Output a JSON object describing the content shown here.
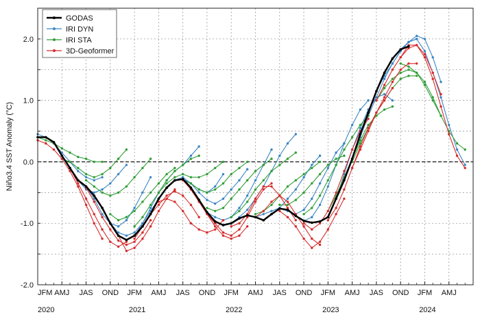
{
  "chart_data": {
    "type": "line",
    "ylabel": "Niño3.4 SST Anomaly (°C)",
    "ylim": [
      -2.0,
      2.5
    ],
    "yticks": [
      -2.0,
      -1.0,
      0.0,
      1.0,
      2.0
    ],
    "ytick_labels": [
      "-2.0",
      "-1.0",
      "0.0",
      "1.0",
      "2.0"
    ],
    "x_start": "2020-01",
    "x_months": 54,
    "xtick_labels": [
      "JFM",
      "AMJ",
      "JAS",
      "OND",
      "JFM",
      "AMJ",
      "JAS",
      "OND",
      "JFM",
      "AMJ",
      "JAS",
      "OND",
      "JFM",
      "AMJ",
      "JAS",
      "OND",
      "JFM",
      "AMJ"
    ],
    "year_labels": [
      "2020",
      "2021",
      "2022",
      "2023",
      "2024"
    ],
    "year_label_months": [
      0,
      12,
      24,
      36,
      48
    ],
    "reference_line": 0.0,
    "grid": true,
    "legend": {
      "placement": "top-left",
      "entries": [
        {
          "name": "GODAS",
          "color": "#000000",
          "width": 2.5
        },
        {
          "name": "IRI DYN",
          "color": "#3a86c4",
          "width": 1.2
        },
        {
          "name": "IRI STA",
          "color": "#2f9e36",
          "width": 1.2
        },
        {
          "name": "3D-Geoformer",
          "color": "#d62b2b",
          "width": 1.2
        }
      ]
    },
    "observed": {
      "name": "GODAS",
      "values": [
        0.4,
        0.4,
        0.32,
        0.1,
        -0.1,
        -0.3,
        -0.4,
        -0.55,
        -0.75,
        -1.0,
        -1.2,
        -1.27,
        -1.2,
        -1.05,
        -0.85,
        -0.6,
        -0.42,
        -0.3,
        -0.28,
        -0.42,
        -0.62,
        -0.82,
        -0.97,
        -1.03,
        -1.0,
        -0.92,
        -0.87,
        -0.9,
        -0.95,
        -0.85,
        -0.76,
        -0.78,
        -0.88,
        -0.96,
        -0.99,
        -0.97,
        -0.9,
        -0.6,
        -0.3,
        0.05,
        0.45,
        0.8,
        1.15,
        1.45,
        1.68,
        1.83,
        1.88,
        null,
        null,
        null,
        null,
        null,
        null,
        null
      ]
    },
    "series": [
      {
        "name": "IRI DYN",
        "forecasts": [
          {
            "start": 0,
            "values": [
              0.45,
              0.4,
              0.3,
              0.15,
              0.0,
              -0.15,
              -0.25,
              -0.3,
              -0.25
            ]
          },
          {
            "start": 3,
            "values": [
              0.1,
              -0.1,
              -0.3,
              -0.45,
              -0.5,
              -0.45,
              -0.35,
              -0.2,
              -0.05
            ]
          },
          {
            "start": 6,
            "values": [
              -0.4,
              -0.6,
              -0.85,
              -1.0,
              -1.05,
              -0.95,
              -0.75,
              -0.5,
              -0.25
            ]
          },
          {
            "start": 9,
            "values": [
              -1.0,
              -1.15,
              -1.2,
              -1.15,
              -1.0,
              -0.8,
              -0.6,
              -0.42,
              -0.3
            ]
          },
          {
            "start": 12,
            "values": [
              -1.2,
              -1.0,
              -0.75,
              -0.5,
              -0.3,
              -0.15,
              -0.05,
              0.1,
              0.25
            ]
          },
          {
            "start": 15,
            "values": [
              -0.6,
              -0.42,
              -0.3,
              -0.25,
              -0.35,
              -0.45,
              -0.5,
              -0.4,
              -0.2
            ]
          },
          {
            "start": 18,
            "values": [
              -0.28,
              -0.35,
              -0.5,
              -0.62,
              -0.68,
              -0.6,
              -0.45,
              -0.3,
              -0.12
            ]
          },
          {
            "start": 21,
            "values": [
              -0.82,
              -0.9,
              -0.95,
              -0.9,
              -0.75,
              -0.55,
              -0.3,
              -0.05,
              0.2
            ]
          },
          {
            "start": 24,
            "values": [
              -1.0,
              -0.9,
              -0.78,
              -0.6,
              -0.4,
              -0.15,
              0.1,
              0.3,
              0.45
            ]
          },
          {
            "start": 27,
            "values": [
              -0.9,
              -0.85,
              -0.8,
              -0.75,
              -0.6,
              -0.45,
              -0.25,
              -0.05,
              0.1
            ]
          },
          {
            "start": 30,
            "values": [
              -0.76,
              -0.8,
              -0.85,
              -0.78,
              -0.6,
              -0.35,
              -0.1,
              0.15,
              0.3
            ]
          },
          {
            "start": 33,
            "values": [
              -0.96,
              -0.9,
              -0.7,
              -0.4,
              -0.05,
              0.3,
              0.6,
              0.85,
              1.0
            ]
          },
          {
            "start": 36,
            "values": [
              -0.9,
              -0.6,
              -0.2,
              0.2,
              0.55,
              0.85,
              1.05,
              1.1,
              1.0
            ]
          },
          {
            "start": 39,
            "values": [
              0.05,
              0.4,
              0.75,
              1.05,
              1.35,
              1.6,
              1.8,
              1.95,
              2.0
            ]
          },
          {
            "start": 42,
            "values": [
              1.15,
              1.4,
              1.6,
              1.8,
              1.95,
              2.05,
              2.0,
              1.7,
              1.3
            ]
          },
          {
            "start": 45,
            "values": [
              1.83,
              1.95,
              2.0,
              1.8,
              1.45,
              1.05,
              0.6,
              0.2,
              -0.05
            ]
          }
        ]
      },
      {
        "name": "IRI STA",
        "forecasts": [
          {
            "start": 0,
            "values": [
              0.4,
              0.35,
              0.3,
              0.22,
              0.15,
              0.08,
              0.05,
              0.0,
              0.0
            ]
          },
          {
            "start": 3,
            "values": [
              0.05,
              0.0,
              -0.1,
              -0.2,
              -0.25,
              -0.2,
              -0.1,
              0.05,
              0.2
            ]
          },
          {
            "start": 6,
            "values": [
              -0.3,
              -0.4,
              -0.5,
              -0.55,
              -0.5,
              -0.4,
              -0.25,
              -0.1,
              0.05
            ]
          },
          {
            "start": 9,
            "values": [
              -0.85,
              -0.95,
              -0.9,
              -0.8,
              -0.65,
              -0.5,
              -0.35,
              -0.2,
              -0.1
            ]
          },
          {
            "start": 12,
            "values": [
              -1.05,
              -0.9,
              -0.7,
              -0.5,
              -0.3,
              -0.15,
              -0.05,
              0.05,
              0.1
            ]
          },
          {
            "start": 15,
            "values": [
              -0.5,
              -0.35,
              -0.25,
              -0.2,
              -0.25,
              -0.25,
              -0.2,
              -0.1,
              0.0
            ]
          },
          {
            "start": 18,
            "values": [
              -0.3,
              -0.35,
              -0.45,
              -0.5,
              -0.45,
              -0.35,
              -0.2,
              -0.1,
              0.0
            ]
          },
          {
            "start": 21,
            "values": [
              -0.75,
              -0.8,
              -0.75,
              -0.6,
              -0.45,
              -0.3,
              -0.15,
              -0.05,
              0.05
            ]
          },
          {
            "start": 24,
            "values": [
              -0.9,
              -0.8,
              -0.65,
              -0.45,
              -0.3,
              -0.15,
              -0.05,
              0.05,
              0.15
            ]
          },
          {
            "start": 27,
            "values": [
              -0.85,
              -0.8,
              -0.7,
              -0.55,
              -0.4,
              -0.3,
              -0.2,
              -0.1,
              0.0
            ]
          },
          {
            "start": 30,
            "values": [
              -0.7,
              -0.7,
              -0.62,
              -0.5,
              -0.35,
              -0.2,
              -0.05,
              0.05,
              0.1
            ]
          },
          {
            "start": 33,
            "values": [
              -0.85,
              -0.75,
              -0.55,
              -0.3,
              -0.05,
              0.2,
              0.4,
              0.6,
              0.75
            ]
          },
          {
            "start": 36,
            "values": [
              -0.8,
              -0.55,
              -0.25,
              0.05,
              0.35,
              0.6,
              0.75,
              0.85,
              0.9
            ]
          },
          {
            "start": 39,
            "values": [
              0.0,
              0.3,
              0.55,
              0.8,
              1.0,
              1.2,
              1.35,
              1.4,
              1.4
            ]
          },
          {
            "start": 42,
            "values": [
              1.0,
              1.2,
              1.35,
              1.45,
              1.5,
              1.45,
              1.3,
              1.05,
              0.75
            ]
          },
          {
            "start": 45,
            "values": [
              1.6,
              1.55,
              1.45,
              1.25,
              1.0,
              0.75,
              0.5,
              0.3,
              0.2
            ]
          }
        ]
      },
      {
        "name": "3D-Geoformer",
        "forecasts": [
          {
            "start": 0,
            "values": [
              0.35,
              0.3,
              0.2,
              0.05,
              -0.15,
              -0.4,
              -0.7,
              -1.0,
              -1.25
            ]
          },
          {
            "start": 3,
            "values": [
              0.1,
              -0.1,
              -0.35,
              -0.6,
              -0.85,
              -1.1,
              -1.3,
              -1.38,
              -1.3
            ]
          },
          {
            "start": 6,
            "values": [
              -0.42,
              -0.65,
              -0.9,
              -1.1,
              -1.28,
              -1.35,
              -1.3,
              -1.15,
              -0.95
            ]
          },
          {
            "start": 9,
            "values": [
              -1.0,
              -1.2,
              -1.45,
              -1.4,
              -1.25,
              -1.05,
              -0.8,
              -0.6,
              -0.45
            ]
          },
          {
            "start": 12,
            "values": [
              -1.25,
              -1.05,
              -0.85,
              -0.7,
              -0.55,
              -0.48,
              -0.55,
              -0.7,
              -0.9
            ]
          },
          {
            "start": 15,
            "values": [
              -0.65,
              -0.6,
              -0.65,
              -0.8,
              -1.0,
              -1.1,
              -1.15,
              -1.1,
              -0.95
            ]
          },
          {
            "start": 18,
            "values": [
              -0.3,
              -0.45,
              -0.65,
              -0.85,
              -1.05,
              -1.2,
              -1.25,
              -1.2,
              -1.05
            ]
          },
          {
            "start": 21,
            "values": [
              -0.85,
              -1.0,
              -1.15,
              -1.2,
              -1.1,
              -0.9,
              -0.65,
              -0.45,
              -0.35
            ]
          },
          {
            "start": 24,
            "values": [
              -1.05,
              -1.0,
              -0.85,
              -0.6,
              -0.4,
              -0.4,
              -0.55,
              -0.75,
              -0.95
            ]
          },
          {
            "start": 27,
            "values": [
              -0.9,
              -0.8,
              -0.65,
              -0.55,
              -0.65,
              -0.85,
              -1.05,
              -1.25,
              -1.35
            ]
          },
          {
            "start": 30,
            "values": [
              -0.8,
              -0.9,
              -1.05,
              -1.25,
              -1.4,
              -1.3,
              -1.1,
              -0.85,
              -0.6
            ]
          },
          {
            "start": 33,
            "values": [
              -1.0,
              -1.1,
              -1.0,
              -0.8,
              -0.5,
              -0.15,
              0.2,
              0.5,
              0.7
            ]
          },
          {
            "start": 36,
            "values": [
              -0.95,
              -0.75,
              -0.45,
              -0.1,
              0.25,
              0.55,
              0.8,
              1.0,
              1.2
            ]
          },
          {
            "start": 39,
            "values": [
              -0.1,
              0.2,
              0.5,
              0.8,
              1.05,
              1.3,
              1.5,
              1.6,
              1.6
            ]
          },
          {
            "start": 42,
            "values": [
              1.0,
              1.25,
              1.5,
              1.7,
              1.9,
              1.9,
              1.75,
              1.45,
              1.1
            ]
          },
          {
            "start": 45,
            "values": [
              1.7,
              1.85,
              1.9,
              1.7,
              1.35,
              0.9,
              0.45,
              0.1,
              -0.1
            ]
          }
        ]
      }
    ]
  }
}
